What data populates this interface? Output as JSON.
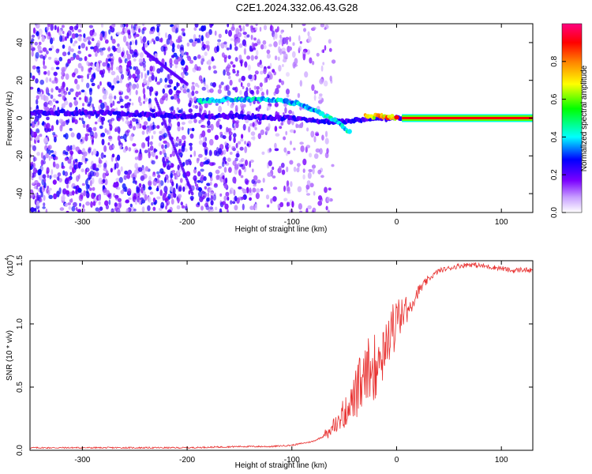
{
  "title": "C2E1.2024.332.06.43.G28",
  "chart_data": [
    {
      "type": "heatmap",
      "xlabel": "Height of straight line (km)",
      "ylabel": "Frequency (Hz)",
      "xlim": [
        -350,
        130
      ],
      "ylim": [
        -50,
        50
      ],
      "x_ticks": [
        -300,
        -200,
        -100,
        0,
        100
      ],
      "x_tick_labels": [
        "-300",
        "-200",
        "-100",
        "0",
        "100"
      ],
      "y_ticks": [
        -40,
        -20,
        0,
        20,
        40
      ],
      "y_tick_labels": [
        "-40",
        "-20",
        "0",
        "20",
        "40"
      ],
      "colorbar": {
        "label": "Normalized spectral amplitude",
        "range": [
          0,
          1
        ],
        "ticks": [
          0.0,
          0.2,
          0.4,
          0.6,
          0.8
        ],
        "tick_labels": [
          "0.0",
          "0.2",
          "0.4",
          "0.6",
          "0.8"
        ],
        "colors": [
          "#ffffff",
          "#7b00ff",
          "#0000ff",
          "#00ffff",
          "#00ff00",
          "#ffff00",
          "#ff8000",
          "#ff0000",
          "#ff0080"
        ]
      },
      "tracks": [
        {
          "x": [
            -350,
            -300,
            -250,
            -200,
            -150,
            -100,
            -60,
            -40,
            -20,
            0,
            130
          ],
          "y": [
            3,
            3,
            2,
            1,
            1,
            0,
            -2,
            -1,
            0,
            0,
            0
          ],
          "level": "low"
        },
        {
          "x": [
            -190,
            -160,
            -130,
            -110,
            -90,
            -70,
            -55,
            -45
          ],
          "y": [
            9,
            10,
            10,
            9,
            7,
            2,
            -3,
            -7
          ],
          "level": "mid"
        },
        {
          "x": [
            -30,
            -20,
            -10,
            0
          ],
          "y": [
            1,
            1,
            1,
            0
          ],
          "level": "high"
        },
        {
          "x": [
            5,
            130
          ],
          "y": [
            0,
            0
          ],
          "level": "max"
        }
      ]
    },
    {
      "type": "line",
      "xlabel": "Height of straight line (km)",
      "ylabel": "SNR (10 * v/v)",
      "y_scale_label": "(x10",
      "y_scale_exponent": "4",
      "xlim": [
        -350,
        130
      ],
      "ylim": [
        0,
        1.5
      ],
      "x_ticks": [
        -300,
        -200,
        -100,
        0,
        100
      ],
      "x_tick_labels": [
        "-300",
        "-200",
        "-100",
        "0",
        "100"
      ],
      "y_ticks": [
        0,
        0.5,
        1.0,
        1.5
      ],
      "y_tick_labels": [
        "0.0",
        "0.5",
        "1.0",
        "1.5"
      ],
      "color": "#e8302f",
      "series": [
        {
          "x": [
            -350,
            -300,
            -250,
            -200,
            -150,
            -120,
            -100,
            -80,
            -60,
            -50,
            -40,
            -30,
            -20,
            -10,
            0,
            10,
            20,
            30,
            40,
            50,
            60,
            70,
            80,
            90,
            100,
            110,
            120,
            130
          ],
          "y": [
            0.02,
            0.02,
            0.02,
            0.02,
            0.03,
            0.03,
            0.04,
            0.07,
            0.15,
            0.25,
            0.35,
            0.45,
            0.6,
            0.78,
            0.95,
            1.1,
            1.25,
            1.35,
            1.42,
            1.44,
            1.46,
            1.47,
            1.46,
            1.45,
            1.44,
            1.42,
            1.43,
            1.42
          ]
        }
      ]
    }
  ]
}
